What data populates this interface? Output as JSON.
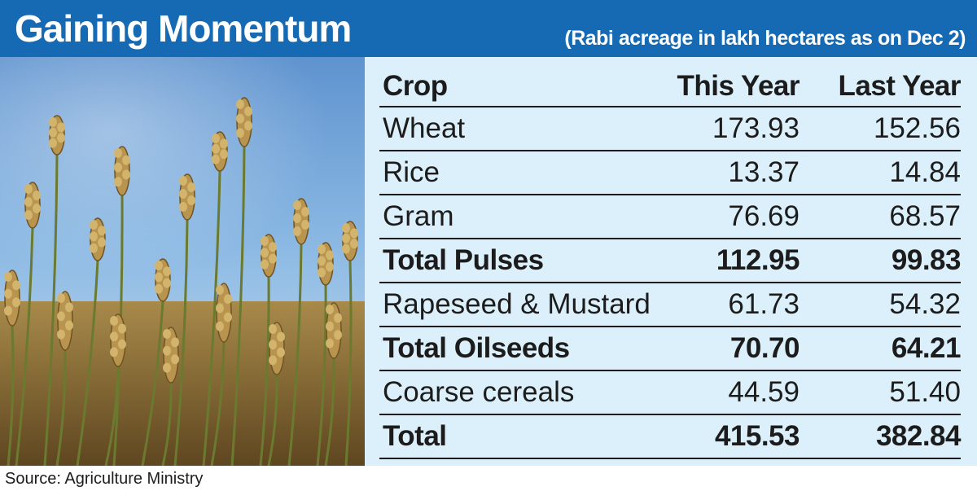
{
  "header": {
    "title": "Gaining Momentum",
    "subtitle": "(Rabi acreage in lakh hectares as on Dec 2)",
    "bg_color": "#1669b3"
  },
  "photo": {
    "subject": "wheat-field-photo"
  },
  "chart_data": {
    "type": "table",
    "title": "Gaining Momentum",
    "subtitle": "(Rabi acreage in lakh hectares as on Dec 2)",
    "columns": [
      "Crop",
      "This Year",
      "Last Year"
    ],
    "rows": [
      {
        "crop": "Wheat",
        "this_year": "173.93",
        "last_year": "152.56",
        "bold": false
      },
      {
        "crop": "Rice",
        "this_year": "13.37",
        "last_year": "14.84",
        "bold": false
      },
      {
        "crop": "Gram",
        "this_year": "76.69",
        "last_year": "68.57",
        "bold": false
      },
      {
        "crop": "Total Pulses",
        "this_year": "112.95",
        "last_year": "99.83",
        "bold": true
      },
      {
        "crop": "Rapeseed & Mustard",
        "this_year": "61.73",
        "last_year": "54.32",
        "bold": false
      },
      {
        "crop": "Total Oilseeds",
        "this_year": "70.70",
        "last_year": "64.21",
        "bold": true
      },
      {
        "crop": "Coarse cereals",
        "this_year": "44.59",
        "last_year": "51.40",
        "bold": false
      },
      {
        "crop": "Total",
        "this_year": "415.53",
        "last_year": "382.84",
        "bold": true
      }
    ],
    "table_bg": "#dcf0fb"
  },
  "source": "Source: Agriculture Ministry"
}
